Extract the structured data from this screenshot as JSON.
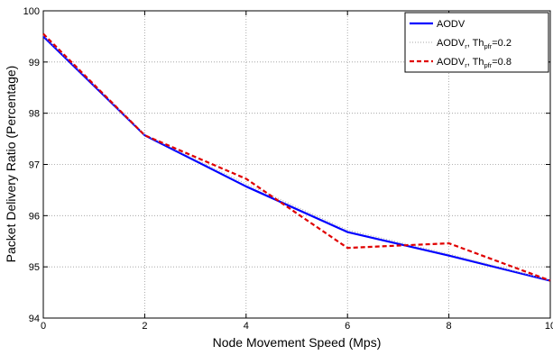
{
  "chart_data": {
    "type": "line",
    "xlabel": "Node Movement Speed (Mps)",
    "ylabel": "Packet Delivery Ratio (Percentage)",
    "xlim": [
      0,
      10
    ],
    "ylim": [
      94,
      100
    ],
    "xticks": [
      0,
      2,
      4,
      6,
      8,
      10
    ],
    "yticks": [
      94,
      95,
      96,
      97,
      98,
      99,
      100
    ],
    "grid": true,
    "legend_position": "top-right",
    "x": [
      0,
      2,
      4,
      6,
      8,
      10
    ],
    "series": [
      {
        "name": "AODV",
        "legend_base": "AODV",
        "legend_sub": "",
        "legend_mid": "",
        "legend_sub2": "",
        "legend_tail": "",
        "values": [
          99.5,
          97.57,
          96.57,
          95.68,
          95.22,
          94.73
        ],
        "color": "#0000ff",
        "dash": "none",
        "width": 2.2
      },
      {
        "name": "AODVr, Thpfr=0.2",
        "legend_base": "AODV",
        "legend_sub": "r",
        "legend_mid": ", Th",
        "legend_sub2": "pfr",
        "legend_tail": "=0.2",
        "values": [
          99.52,
          97.58,
          96.62,
          95.72,
          95.25,
          94.74
        ],
        "color": "#b8b8b8",
        "dash": "1,2",
        "width": 1.3
      },
      {
        "name": "AODVr, Thpfr=0.8",
        "legend_base": "AODV",
        "legend_sub": "r",
        "legend_mid": ", Th",
        "legend_sub2": "pfr",
        "legend_tail": "=0.8",
        "values": [
          99.55,
          97.57,
          96.72,
          95.37,
          95.46,
          94.73
        ],
        "color": "#e00000",
        "dash": "5,3",
        "width": 2.2
      }
    ]
  }
}
